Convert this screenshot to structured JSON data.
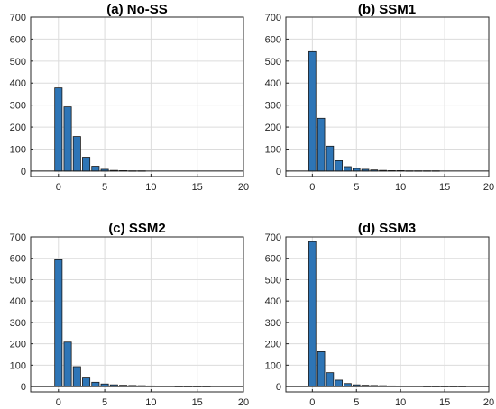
{
  "chart_data": [
    {
      "type": "bar",
      "title": "(a) No-SS",
      "x": [
        0,
        1,
        2,
        3,
        4,
        5,
        6,
        7,
        8,
        9,
        10,
        11,
        12,
        13,
        14,
        15,
        16,
        17,
        18,
        19
      ],
      "values": [
        378,
        292,
        157,
        63,
        22,
        8,
        3,
        2,
        1,
        1,
        0,
        0,
        0,
        0,
        0,
        0,
        0,
        0,
        0,
        0
      ],
      "xlim": [
        -3,
        20
      ],
      "ylim": [
        -25,
        700
      ],
      "xticks": [
        "0",
        "5",
        "10",
        "15",
        "20"
      ],
      "yticks": [
        "0",
        "100",
        "200",
        "300",
        "400",
        "500",
        "600",
        "700"
      ],
      "grid": true,
      "color": "#2e75b6"
    },
    {
      "type": "bar",
      "title": "(b) SSM1",
      "x": [
        0,
        1,
        2,
        3,
        4,
        5,
        6,
        7,
        8,
        9,
        10,
        11,
        12,
        13,
        14,
        15,
        16,
        17,
        18,
        19
      ],
      "values": [
        543,
        240,
        113,
        47,
        20,
        12,
        8,
        5,
        3,
        2,
        2,
        1,
        1,
        1,
        1,
        0,
        0,
        0,
        0,
        0
      ],
      "xlim": [
        -3,
        20
      ],
      "ylim": [
        -25,
        700
      ],
      "xticks": [
        "0",
        "5",
        "10",
        "15",
        "20"
      ],
      "yticks": [
        "0",
        "100",
        "200",
        "300",
        "400",
        "500",
        "600",
        "700"
      ],
      "grid": true,
      "color": "#2e75b6"
    },
    {
      "type": "bar",
      "title": "(c) SSM2",
      "x": [
        0,
        1,
        2,
        3,
        4,
        5,
        6,
        7,
        8,
        9,
        10,
        11,
        12,
        13,
        14,
        15,
        16,
        17,
        18,
        19
      ],
      "values": [
        593,
        208,
        93,
        40,
        20,
        12,
        8,
        6,
        5,
        4,
        3,
        2,
        2,
        1,
        1,
        1,
        1,
        0,
        0,
        0
      ],
      "xlim": [
        -3,
        20
      ],
      "ylim": [
        -25,
        700
      ],
      "xticks": [
        "0",
        "5",
        "10",
        "15",
        "20"
      ],
      "yticks": [
        "0",
        "100",
        "200",
        "300",
        "400",
        "500",
        "600",
        "700"
      ],
      "grid": true,
      "color": "#2e75b6"
    },
    {
      "type": "bar",
      "title": "(d) SSM3",
      "x": [
        0,
        1,
        2,
        3,
        4,
        5,
        6,
        7,
        8,
        9,
        10,
        11,
        12,
        13,
        14,
        15,
        16,
        17,
        18,
        19
      ],
      "values": [
        678,
        163,
        65,
        30,
        14,
        8,
        6,
        5,
        4,
        3,
        2,
        2,
        2,
        1,
        1,
        1,
        1,
        1,
        0,
        0
      ],
      "xlim": [
        -3,
        20
      ],
      "ylim": [
        -25,
        700
      ],
      "xticks": [
        "0",
        "5",
        "10",
        "15",
        "20"
      ],
      "yticks": [
        "0",
        "100",
        "200",
        "300",
        "400",
        "500",
        "600",
        "700"
      ],
      "grid": true,
      "color": "#2e75b6"
    }
  ]
}
